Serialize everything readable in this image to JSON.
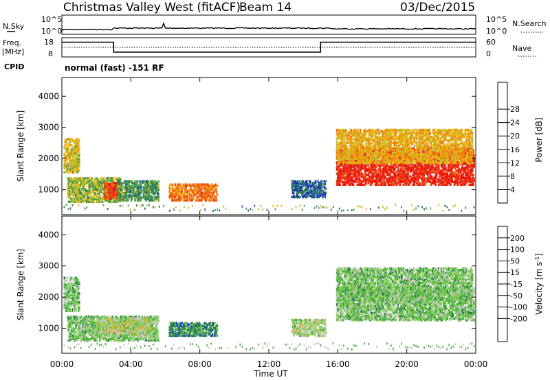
{
  "header": {
    "title": "Christmas Valley West (fitACF)",
    "beam": "Beam 14",
    "date": "03/Dec/2015"
  },
  "noise_panel": {
    "left_label": "N.Sky",
    "right_label": "N.Search",
    "left_ticks": [
      "10^5",
      "10^0"
    ],
    "right_ticks": [
      "10^5",
      "10^0"
    ]
  },
  "freq_panel": {
    "left_label": "Freq.",
    "left_unit": "[MHz]",
    "right_label": "Nave",
    "left_ticks": [
      "18",
      "8"
    ],
    "right_ticks": [
      "60",
      "0"
    ],
    "freq_steps": [
      {
        "from": 0,
        "to": 3,
        "mhz": 15.2
      },
      {
        "from": 3,
        "to": 15,
        "mhz": 9.0
      },
      {
        "from": 15,
        "to": 24,
        "mhz": 15.2
      }
    ]
  },
  "cpid": {
    "label": "CPID",
    "mode": "normal (fast) -151 RF"
  },
  "chart_data": [
    {
      "type": "heatmap",
      "name": "power",
      "ylabel": "Slant Range [km]",
      "yticks": [
        1000,
        2000,
        3000,
        4000
      ],
      "ylim": [
        200,
        4600
      ],
      "xlim": [
        0,
        24
      ],
      "colorbar": {
        "label": "Power [dB]",
        "ticks": [
          "4",
          "8",
          "12",
          "16",
          "20",
          "24",
          "28"
        ],
        "colors": [
          "#1c18d8",
          "#1c58a8",
          "#2e7a52",
          "#4aa050",
          "#c8c020",
          "#f0b010",
          "#f08010",
          "#f04a10",
          "#e81a10"
        ]
      },
      "regions": [
        {
          "t": [
            0.1,
            1.0
          ],
          "r": [
            1600,
            2700
          ],
          "level": 0.55
        },
        {
          "t": [
            0.3,
            3.4
          ],
          "r": [
            650,
            1450
          ],
          "level": 0.45
        },
        {
          "t": [
            2.4,
            3.2
          ],
          "r": [
            750,
            1300
          ],
          "level": 0.85
        },
        {
          "t": [
            3.2,
            5.6
          ],
          "r": [
            700,
            1350
          ],
          "level": 0.35
        },
        {
          "t": [
            6.2,
            9.0
          ],
          "r": [
            700,
            1250
          ],
          "level": 0.75
        },
        {
          "t": [
            13.3,
            15.3
          ],
          "r": [
            800,
            1350
          ],
          "level": 0.2
        },
        {
          "t": [
            15.9,
            23.9
          ],
          "r": [
            1200,
            2400
          ],
          "level": 0.95
        },
        {
          "t": [
            15.9,
            23.8
          ],
          "r": [
            1900,
            3000
          ],
          "level": 0.6
        }
      ]
    },
    {
      "type": "heatmap",
      "name": "velocity",
      "ylabel": "Slant Range [km]",
      "xlabel": "Time UT",
      "xticks": [
        "00:00",
        "04:00",
        "08:00",
        "12:00",
        "16:00",
        "20:00",
        "00:00"
      ],
      "yticks": [
        1000,
        2000,
        3000,
        4000
      ],
      "ylim": [
        200,
        4600
      ],
      "xlim": [
        0,
        24
      ],
      "colorbar": {
        "label": "Velocity [m s^-1]",
        "ticks": [
          "200",
          "100",
          "50",
          "15",
          "-15",
          "-50",
          "-100",
          "-200"
        ],
        "colors": [
          "#1c18d8",
          "#1c4ab8",
          "#2a7a50",
          "#4cb040",
          "#80d050",
          "#c8c8c0",
          "#f0b020",
          "#f08010",
          "#f04010",
          "#e81a10"
        ]
      },
      "regions": [
        {
          "t": [
            0.1,
            1.0
          ],
          "r": [
            1600,
            2700
          ],
          "level": 0.42
        },
        {
          "t": [
            0.3,
            5.6
          ],
          "r": [
            650,
            1450
          ],
          "level": 0.42
        },
        {
          "t": [
            2.0,
            5.2
          ],
          "r": [
            800,
            1400
          ],
          "level": 0.52
        },
        {
          "t": [
            6.2,
            9.0
          ],
          "r": [
            800,
            1250
          ],
          "level": 0.28
        },
        {
          "t": [
            13.3,
            15.3
          ],
          "r": [
            800,
            1350
          ],
          "level": 0.5
        },
        {
          "t": [
            15.9,
            23.9
          ],
          "r": [
            1300,
            2400
          ],
          "level": 0.42
        },
        {
          "t": [
            15.9,
            23.8
          ],
          "r": [
            1900,
            3000
          ],
          "level": 0.42
        }
      ]
    }
  ]
}
